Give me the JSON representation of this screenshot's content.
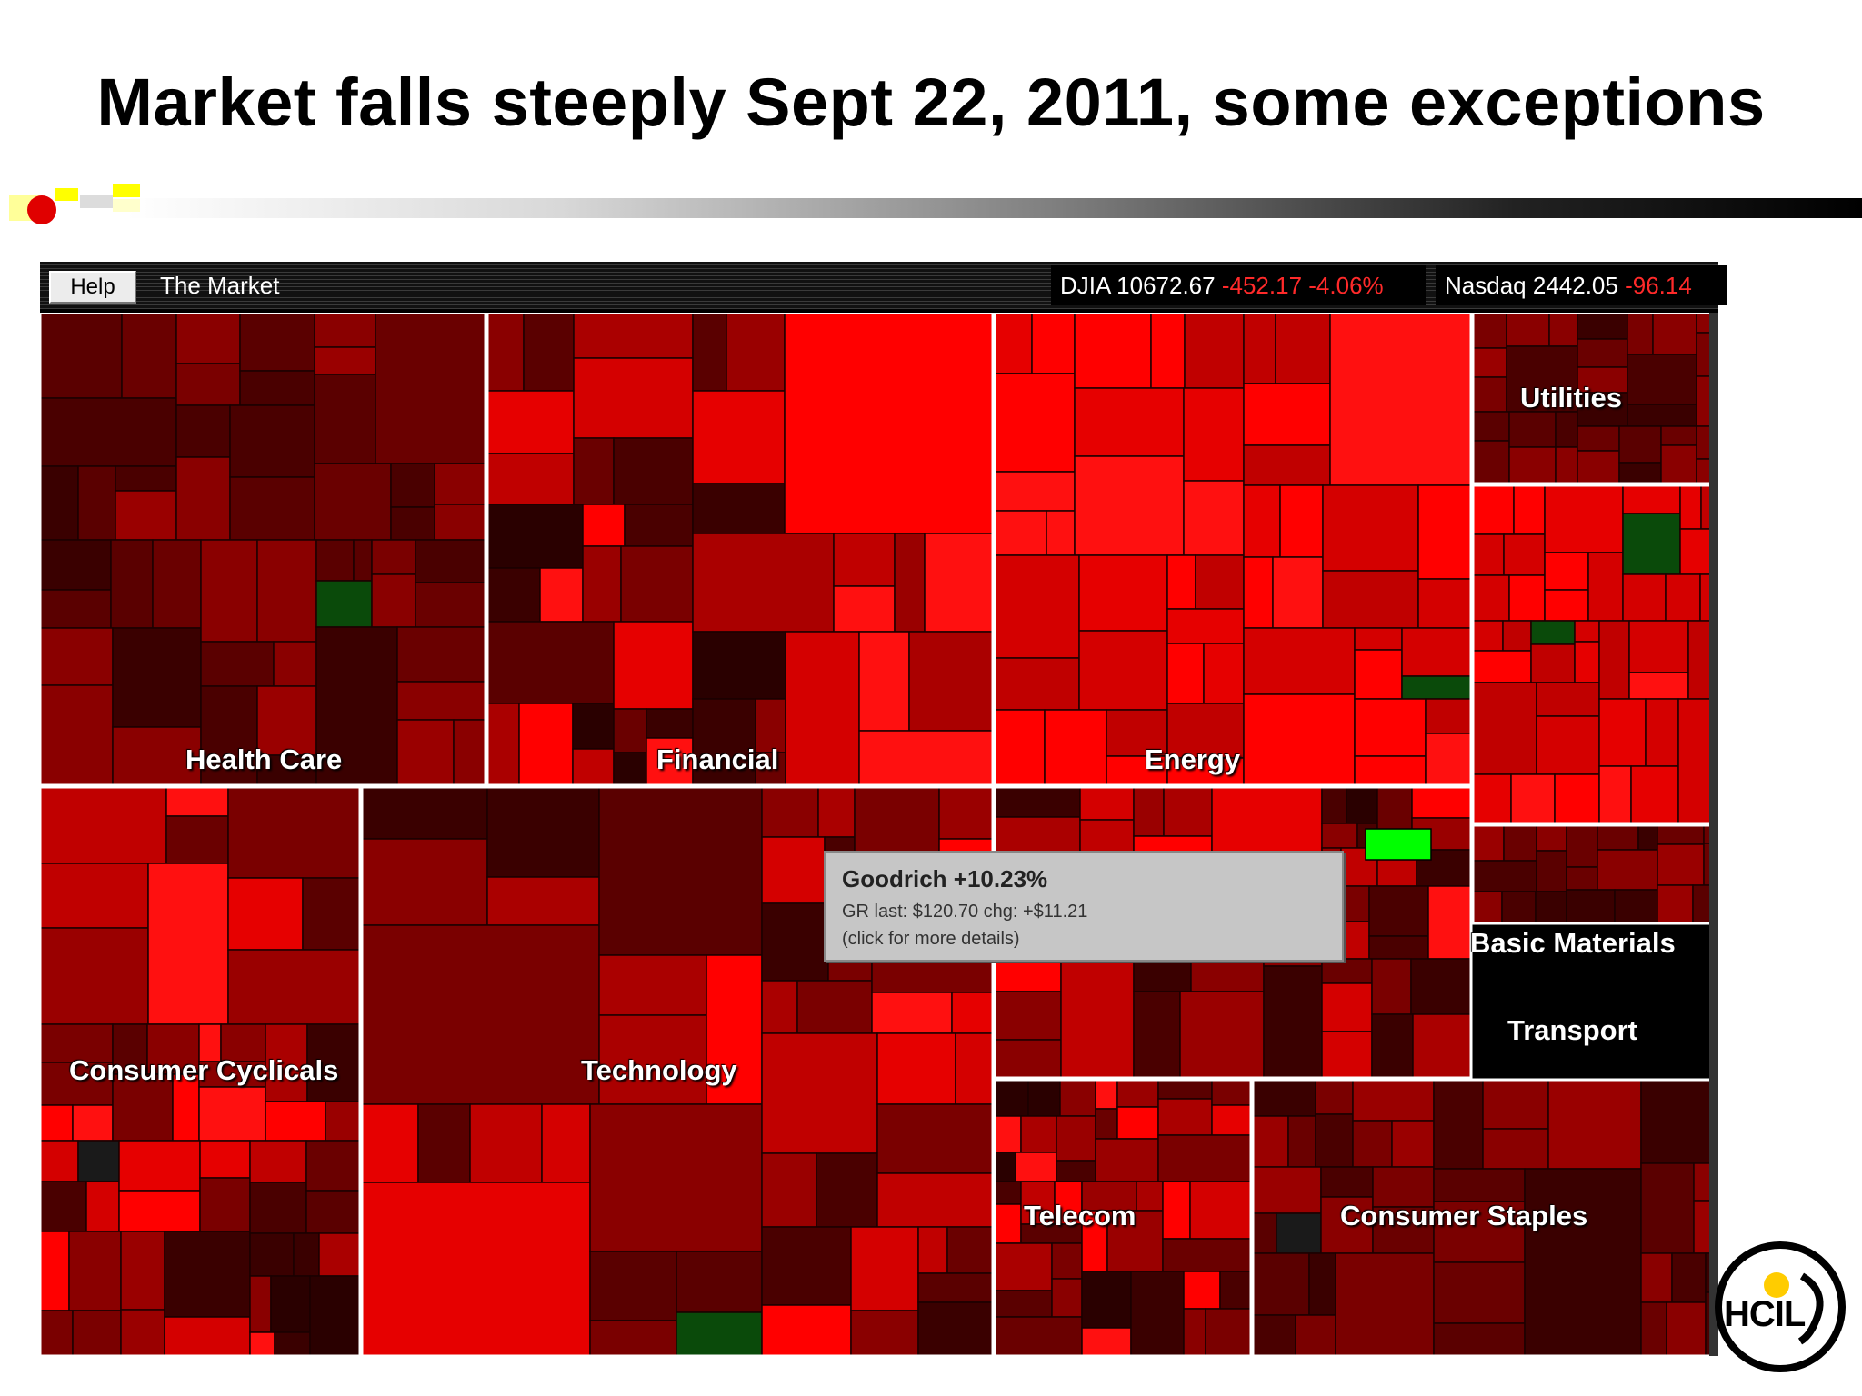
{
  "slide": {
    "title": "Market falls steeply Sept 22, 2011, some exceptions"
  },
  "app": {
    "help_label": "Help",
    "market_label": "The Market",
    "djia": {
      "name": "DJIA",
      "value": "10672.67",
      "change": "-452.17",
      "pct": "-4.06%"
    },
    "nasdaq": {
      "name": "Nasdaq",
      "value": "2442.05",
      "change": "-96.14"
    }
  },
  "sectors": [
    {
      "name": "Health Care"
    },
    {
      "name": "Financial"
    },
    {
      "name": "Energy"
    },
    {
      "name": "Utilities"
    },
    {
      "name": "Basic Materials"
    },
    {
      "name": "Consumer Cyclicals"
    },
    {
      "name": "Technology"
    },
    {
      "name": "Transport"
    },
    {
      "name": "Telecom"
    },
    {
      "name": "Consumer Staples"
    }
  ],
  "tooltip": {
    "title": "Goodrich +10.23%",
    "line1": "GR last: $120.70 chg: +$11.21",
    "line2": "(click for more details)"
  },
  "logo": {
    "text": "HCIL"
  },
  "colors": {
    "deep_red": "#4a0000",
    "bright_red": "#ff0000",
    "bright_green": "#00ff00",
    "dark_green": "#0b5c0b",
    "tooltip_bg": "#c6c6c6"
  }
}
